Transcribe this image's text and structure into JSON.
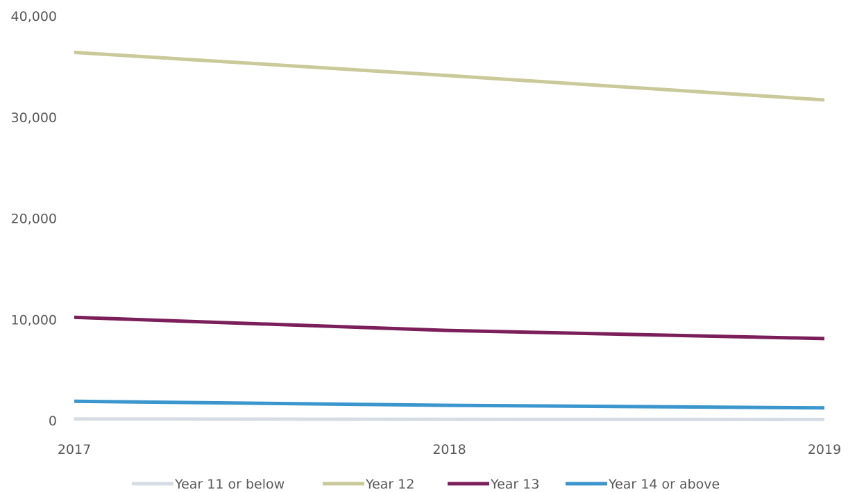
{
  "chart_data": {
    "type": "line",
    "title": "",
    "xlabel": "",
    "ylabel": "",
    "x": [
      "2017",
      "2018",
      "2019"
    ],
    "y_ticks": [
      "0",
      "10,000",
      "20,000",
      "30,000",
      "40,000"
    ],
    "ylim": [
      0,
      40000
    ],
    "grid": false,
    "legend_position": "bottom",
    "series": [
      {
        "name": "Year 11 or below",
        "color": "#d6dce4",
        "values": [
          150,
          120,
          100
        ]
      },
      {
        "name": "Year 12",
        "color": "#c9c99a",
        "values": [
          36400,
          34100,
          31700
        ]
      },
      {
        "name": "Year 13",
        "color": "#7b1f5a",
        "values": [
          10200,
          8900,
          8100
        ]
      },
      {
        "name": "Year 14 or above",
        "color": "#3a96cc",
        "values": [
          1900,
          1500,
          1250
        ]
      }
    ]
  }
}
